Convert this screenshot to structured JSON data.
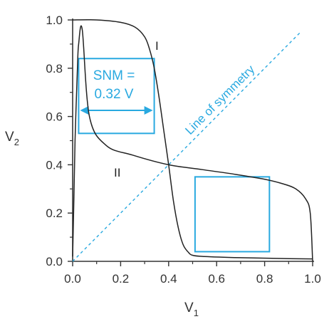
{
  "chart_data": {
    "type": "line",
    "xlabel": "V",
    "xlabel_sub": "1",
    "ylabel": "V",
    "ylabel_sub": "2",
    "xlim": [
      0,
      1
    ],
    "ylim": [
      0,
      1
    ],
    "xticks": [
      "0.0",
      "0.2",
      "0.4",
      "0.6",
      "0.8",
      "1.0"
    ],
    "yticks": [
      "0.0",
      "0.2",
      "0.4",
      "0.6",
      "0.8",
      "1.0"
    ],
    "grid": false,
    "series": [
      {
        "name": "I",
        "x": [
          0.0,
          0.1,
          0.2,
          0.26,
          0.3,
          0.32,
          0.34,
          0.36,
          0.38,
          0.4,
          0.42,
          0.44,
          0.46,
          0.48,
          0.5,
          0.55,
          0.7,
          0.85,
          1.0
        ],
        "y": [
          1.0,
          1.0,
          0.99,
          0.97,
          0.93,
          0.88,
          0.8,
          0.68,
          0.54,
          0.4,
          0.25,
          0.14,
          0.07,
          0.04,
          0.025,
          0.02,
          0.015,
          0.012,
          0.01
        ]
      },
      {
        "name": "II",
        "x": [
          0.0,
          0.005,
          0.01,
          0.02,
          0.025,
          0.04,
          0.07,
          0.14,
          0.25,
          0.4,
          0.54,
          0.68,
          0.8,
          0.88,
          0.93,
          0.97,
          0.99,
          1.0
        ],
        "y": [
          0.02,
          0.25,
          0.5,
          0.8,
          0.9,
          0.96,
          0.6,
          0.48,
          0.44,
          0.4,
          0.38,
          0.36,
          0.34,
          0.32,
          0.3,
          0.26,
          0.2,
          0.0
        ]
      }
    ],
    "symmetry_line_label": "Line of symmetry",
    "snm_label_line1": "SNM =",
    "snm_label_line2": "0.32 V",
    "snm_boxes": [
      {
        "x0": 0.025,
        "x1": 0.34,
        "y0": 0.53,
        "y1": 0.84
      },
      {
        "x0": 0.51,
        "x1": 0.82,
        "y0": 0.04,
        "y1": 0.35
      }
    ],
    "colors": {
      "curve": "#222222",
      "axis": "#333333",
      "accent": "#29a9e0"
    }
  }
}
